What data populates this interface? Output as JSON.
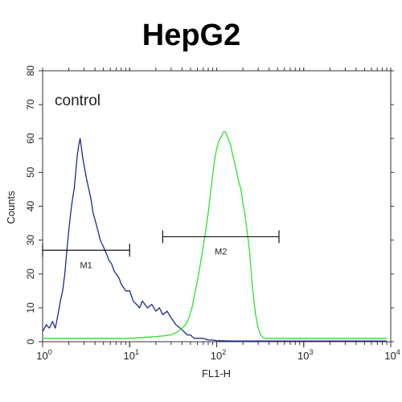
{
  "chart_data": {
    "type": "line",
    "title": "HepG2",
    "xlabel": "FL1-H",
    "ylabel": "Counts",
    "x_scale": "log",
    "xlim": [
      1,
      10000
    ],
    "ylim": [
      0,
      80
    ],
    "y_ticks": [
      0,
      10,
      20,
      30,
      40,
      50,
      60,
      70,
      80
    ],
    "x_ticks": [
      {
        "base": "10",
        "exp": "0"
      },
      {
        "base": "10",
        "exp": "1"
      },
      {
        "base": "10",
        "exp": "2"
      },
      {
        "base": "10",
        "exp": "3"
      },
      {
        "base": "10",
        "exp": "4"
      }
    ],
    "annotation": "control",
    "series": [
      {
        "color": "#1c2a8c",
        "x": [
          1.0,
          1.1,
          1.2,
          1.3,
          1.4,
          1.5,
          1.6,
          1.7,
          1.8,
          1.9,
          2.0,
          2.1,
          2.2,
          2.3,
          2.4,
          2.5,
          2.6,
          2.7,
          2.8,
          2.9,
          3.0,
          3.2,
          3.4,
          3.6,
          3.8,
          4.0,
          4.3,
          4.6,
          5.0,
          5.4,
          5.8,
          6.2,
          6.6,
          7.0,
          7.5,
          8.0,
          8.5,
          9.0,
          10.0,
          11.0,
          12.0,
          13.0,
          14.0,
          15.0,
          16.0,
          18.0,
          20.0,
          22.0,
          24.0,
          27.0,
          30.0,
          34.0,
          38.0,
          42.0,
          46.0,
          50.0,
          55.0,
          60.0,
          70.0,
          80.0,
          90.0,
          100.0,
          150.0,
          300.0,
          1000.0,
          3000.0,
          9000.0
        ],
        "y": [
          3,
          5,
          4,
          6,
          4,
          8,
          12,
          15,
          20,
          27,
          33,
          38,
          42,
          45,
          50,
          55,
          58,
          60,
          57,
          54,
          52,
          48,
          45,
          42,
          38,
          36,
          33,
          30,
          28,
          26,
          24,
          23,
          21,
          20,
          19,
          17,
          16,
          15,
          15,
          12,
          11,
          10,
          12,
          11,
          10,
          11,
          9,
          10,
          8,
          9,
          7,
          5,
          4,
          3,
          2,
          2,
          1,
          1,
          1,
          0.5,
          0.5,
          0.3,
          0.2,
          0.2,
          0.2,
          0.2,
          0.2
        ]
      },
      {
        "color": "#2ee02e",
        "x": [
          1.0,
          3.0,
          10.0,
          20.0,
          30.0,
          36.0,
          40.0,
          44.0,
          48.0,
          52.0,
          56.0,
          60.0,
          65.0,
          70.0,
          75.0,
          80.0,
          85.0,
          90.0,
          95.0,
          100.0,
          105.0,
          110.0,
          115.0,
          120.0,
          125.0,
          130.0,
          135.0,
          140.0,
          145.0,
          150.0,
          160.0,
          170.0,
          180.0,
          190.0,
          200.0,
          210.0,
          220.0,
          230.0,
          240.0,
          250.0,
          260.0,
          280.0,
          300.0,
          320.0,
          350.0,
          400.0,
          600.0,
          1000.0,
          3000.0,
          9000.0
        ],
        "y": [
          1,
          1,
          1,
          1.5,
          2,
          3,
          4,
          5,
          7,
          10,
          14,
          18,
          23,
          28,
          33,
          38,
          44,
          49,
          54,
          57,
          59,
          60,
          61,
          62,
          62,
          61,
          60,
          59,
          58,
          56,
          53,
          50,
          47,
          45,
          41,
          38,
          34,
          30,
          26,
          20,
          15,
          8,
          4,
          2,
          1,
          1,
          1,
          1,
          1,
          1
        ]
      }
    ],
    "markers": [
      {
        "label": "M1",
        "x_start": 1.0,
        "x_end": 10.0,
        "y": 27
      },
      {
        "label": "M2",
        "x_start": 24.0,
        "x_end": 520.0,
        "y": 31
      }
    ]
  }
}
